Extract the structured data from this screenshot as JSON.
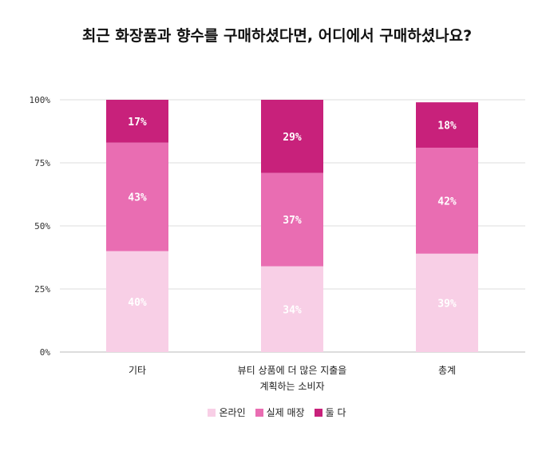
{
  "title": "최근 화장품과 향수를 구매하셨다면, 어디에서 구매하셨나요?",
  "chart_data": {
    "type": "bar",
    "stacked": true,
    "categories": [
      [
        "기타"
      ],
      [
        "뷰티 상품에 더 많은 지출을",
        "계획하는 소비자"
      ],
      [
        "총계"
      ]
    ],
    "series": [
      {
        "name": "온라인",
        "color": "#f8cfe6",
        "values": [
          40,
          34,
          39
        ]
      },
      {
        "name": "실제 매장",
        "color": "#e96db2",
        "values": [
          43,
          37,
          42
        ]
      },
      {
        "name": "둘 다",
        "color": "#c8217b",
        "values": [
          17,
          29,
          18
        ]
      }
    ],
    "data_labels": [
      [
        "40%",
        "34%",
        "39%"
      ],
      [
        "43%",
        "37%",
        "42%"
      ],
      [
        "17%",
        "29%",
        "18%"
      ]
    ],
    "ylim": [
      0,
      100
    ],
    "yticks": [
      0,
      25,
      50,
      75,
      100
    ],
    "ytick_labels": [
      "0%",
      "25%",
      "50%",
      "75%",
      "100%"
    ],
    "grid": true,
    "legend_position": "bottom"
  }
}
